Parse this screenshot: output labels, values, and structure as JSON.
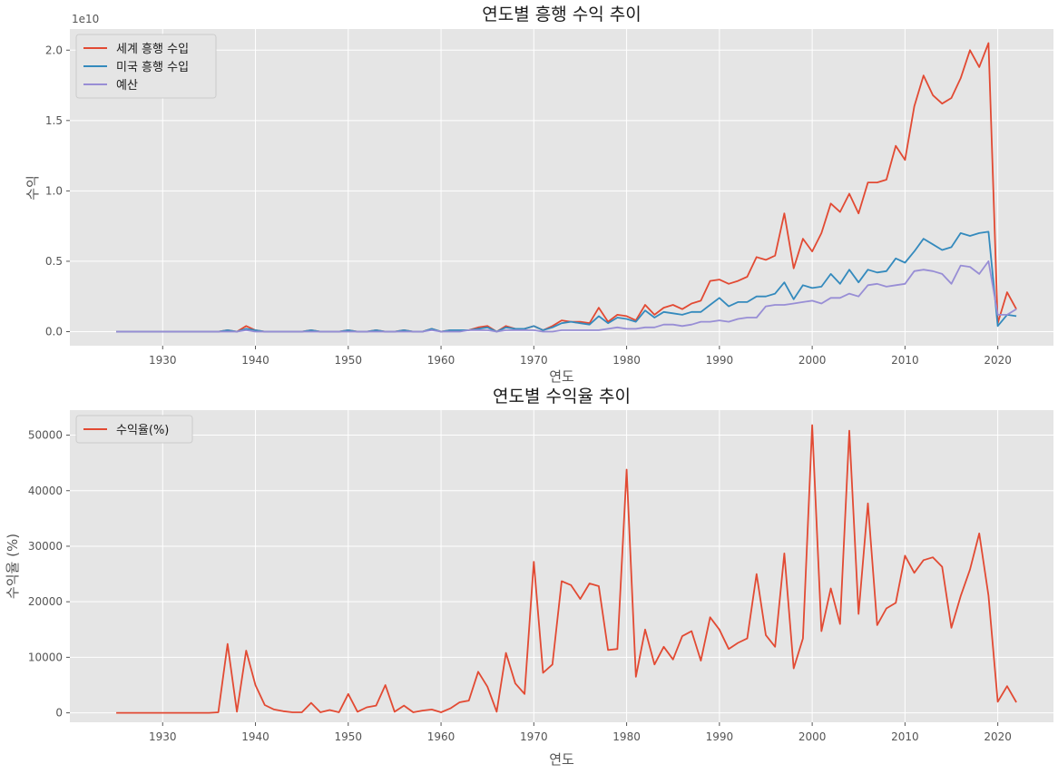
{
  "chart_data": [
    {
      "type": "line",
      "title": "연도별 흥행 수익 추이",
      "xlabel": "연도",
      "ylabel": "수익",
      "y_offset_label": "1e10",
      "y_scale": 10000000000,
      "xlim": [
        1920,
        2026
      ],
      "ylim": [
        -0.1,
        2.15
      ],
      "xticks": [
        1930,
        1940,
        1950,
        1960,
        1970,
        1980,
        1990,
        2000,
        2010,
        2020
      ],
      "xtick_labels": [
        "1930",
        "1940",
        "1950",
        "1960",
        "1970",
        "1980",
        "1990",
        "2000",
        "2010",
        "2020"
      ],
      "yticks": [
        0,
        0.5,
        1.0,
        1.5,
        2.0
      ],
      "ytick_labels": [
        "0.0",
        "0.5",
        "1.0",
        "1.5",
        "2.0"
      ],
      "grid": true,
      "legend_position": "top-left",
      "x": [
        1925,
        1926,
        1927,
        1928,
        1929,
        1930,
        1931,
        1932,
        1933,
        1934,
        1935,
        1936,
        1937,
        1938,
        1939,
        1940,
        1941,
        1942,
        1943,
        1944,
        1945,
        1946,
        1947,
        1948,
        1949,
        1950,
        1951,
        1952,
        1953,
        1954,
        1955,
        1956,
        1957,
        1958,
        1959,
        1960,
        1961,
        1962,
        1963,
        1964,
        1965,
        1966,
        1967,
        1968,
        1969,
        1970,
        1971,
        1972,
        1973,
        1974,
        1975,
        1976,
        1977,
        1978,
        1979,
        1980,
        1981,
        1982,
        1983,
        1984,
        1985,
        1986,
        1987,
        1988,
        1989,
        1990,
        1991,
        1992,
        1993,
        1994,
        1995,
        1996,
        1997,
        1998,
        1999,
        2000,
        2001,
        2002,
        2003,
        2004,
        2005,
        2006,
        2007,
        2008,
        2009,
        2010,
        2011,
        2012,
        2013,
        2014,
        2015,
        2016,
        2017,
        2018,
        2019,
        2020,
        2021,
        2022
      ],
      "series": [
        {
          "name": "세계 흥행 수입",
          "color": "#E24A33",
          "values": [
            0,
            0,
            0,
            0,
            0,
            0,
            0,
            0,
            0,
            0,
            0,
            0,
            0.01,
            0,
            0.04,
            0.01,
            0,
            0,
            0,
            0,
            0,
            0.01,
            0,
            0,
            0,
            0.01,
            0,
            0,
            0.01,
            0,
            0,
            0.01,
            0,
            0,
            0.02,
            0,
            0.01,
            0.01,
            0.01,
            0.03,
            0.04,
            0,
            0.04,
            0.02,
            0.02,
            0.04,
            0.01,
            0.04,
            0.08,
            0.07,
            0.07,
            0.06,
            0.17,
            0.07,
            0.12,
            0.11,
            0.08,
            0.19,
            0.12,
            0.17,
            0.19,
            0.16,
            0.2,
            0.22,
            0.36,
            0.37,
            0.34,
            0.36,
            0.39,
            0.53,
            0.51,
            0.54,
            0.84,
            0.45,
            0.66,
            0.57,
            0.7,
            0.91,
            0.85,
            0.98,
            0.84,
            1.06,
            1.06,
            1.08,
            1.32,
            1.22,
            1.6,
            1.82,
            1.68,
            1.62,
            1.66,
            1.8,
            2.0,
            1.88,
            2.05,
            0.06,
            0.28,
            0.16
          ]
        },
        {
          "name": "미국 흥행 수입",
          "color": "#348ABD",
          "values": [
            0,
            0,
            0,
            0,
            0,
            0,
            0,
            0,
            0,
            0,
            0,
            0,
            0.01,
            0,
            0.02,
            0.01,
            0,
            0,
            0,
            0,
            0,
            0.01,
            0,
            0,
            0,
            0.01,
            0,
            0,
            0.01,
            0,
            0,
            0.01,
            0,
            0,
            0.02,
            0,
            0.01,
            0.01,
            0.01,
            0.02,
            0.03,
            0,
            0.03,
            0.02,
            0.02,
            0.04,
            0.01,
            0.03,
            0.06,
            0.07,
            0.06,
            0.05,
            0.11,
            0.06,
            0.1,
            0.09,
            0.07,
            0.15,
            0.1,
            0.14,
            0.13,
            0.12,
            0.14,
            0.14,
            0.19,
            0.24,
            0.18,
            0.21,
            0.21,
            0.25,
            0.25,
            0.27,
            0.35,
            0.23,
            0.33,
            0.31,
            0.32,
            0.41,
            0.34,
            0.44,
            0.35,
            0.44,
            0.42,
            0.43,
            0.52,
            0.49,
            0.57,
            0.66,
            0.62,
            0.58,
            0.6,
            0.7,
            0.68,
            0.7,
            0.71,
            0.04,
            0.12,
            0.11
          ]
        },
        {
          "name": "예산",
          "color": "#988ED5",
          "values": [
            0,
            0,
            0,
            0,
            0,
            0,
            0,
            0,
            0,
            0,
            0,
            0,
            0,
            0,
            0.01,
            0,
            0,
            0,
            0,
            0,
            0,
            0,
            0,
            0,
            0,
            0,
            0,
            0,
            0,
            0,
            0,
            0,
            0,
            0,
            0.01,
            0,
            0,
            0,
            0.01,
            0.01,
            0.01,
            0,
            0.01,
            0.01,
            0.01,
            0.01,
            0,
            0,
            0.01,
            0.01,
            0.01,
            0.01,
            0.01,
            0.02,
            0.03,
            0.02,
            0.02,
            0.03,
            0.03,
            0.05,
            0.05,
            0.04,
            0.05,
            0.07,
            0.07,
            0.08,
            0.07,
            0.09,
            0.1,
            0.1,
            0.18,
            0.19,
            0.19,
            0.2,
            0.21,
            0.22,
            0.2,
            0.24,
            0.24,
            0.27,
            0.25,
            0.33,
            0.34,
            0.32,
            0.33,
            0.34,
            0.43,
            0.44,
            0.43,
            0.41,
            0.34,
            0.47,
            0.46,
            0.41,
            0.5,
            0.12,
            0.12,
            0.16
          ]
        }
      ]
    },
    {
      "type": "line",
      "title": "연도별 수익율 추이",
      "xlabel": "연도",
      "ylabel": "수익율 (%)",
      "xlim": [
        1920,
        2026
      ],
      "ylim": [
        -1700,
        54500
      ],
      "xticks": [
        1930,
        1940,
        1950,
        1960,
        1970,
        1980,
        1990,
        2000,
        2010,
        2020
      ],
      "xtick_labels": [
        "1930",
        "1940",
        "1950",
        "1960",
        "1970",
        "1980",
        "1990",
        "2000",
        "2010",
        "2020"
      ],
      "yticks": [
        0,
        10000,
        20000,
        30000,
        40000,
        50000
      ],
      "ytick_labels": [
        "0",
        "10000",
        "20000",
        "30000",
        "40000",
        "50000"
      ],
      "grid": true,
      "legend_position": "top-left",
      "x": [
        1925,
        1926,
        1927,
        1928,
        1929,
        1930,
        1931,
        1932,
        1933,
        1934,
        1935,
        1936,
        1937,
        1938,
        1939,
        1940,
        1941,
        1942,
        1943,
        1944,
        1945,
        1946,
        1947,
        1948,
        1949,
        1950,
        1951,
        1952,
        1953,
        1954,
        1955,
        1956,
        1957,
        1958,
        1959,
        1960,
        1961,
        1962,
        1963,
        1964,
        1965,
        1966,
        1967,
        1968,
        1969,
        1970,
        1971,
        1972,
        1973,
        1974,
        1975,
        1976,
        1977,
        1978,
        1979,
        1980,
        1981,
        1982,
        1983,
        1984,
        1985,
        1986,
        1987,
        1988,
        1989,
        1990,
        1991,
        1992,
        1993,
        1994,
        1995,
        1996,
        1997,
        1998,
        1999,
        2000,
        2001,
        2002,
        2003,
        2004,
        2005,
        2006,
        2007,
        2008,
        2009,
        2010,
        2011,
        2012,
        2013,
        2014,
        2015,
        2016,
        2017,
        2018,
        2019,
        2020,
        2021,
        2022
      ],
      "series": [
        {
          "name": "수익율(%)",
          "color": "#E24A33",
          "values": [
            0,
            0,
            0,
            0,
            0,
            0,
            0,
            0,
            0,
            0,
            0,
            100,
            12400,
            200,
            11200,
            5000,
            1400,
            600,
            300,
            100,
            100,
            1800,
            100,
            500,
            100,
            3400,
            200,
            1000,
            1300,
            5000,
            200,
            1300,
            100,
            400,
            600,
            100,
            800,
            1900,
            2200,
            7400,
            4700,
            200,
            10800,
            5300,
            3400,
            27200,
            7200,
            8700,
            23700,
            23000,
            20500,
            23300,
            22800,
            11300,
            11500,
            43800,
            6500,
            15000,
            8700,
            11900,
            9600,
            13800,
            14700,
            9400,
            17200,
            15000,
            11500,
            12600,
            13400,
            25000,
            14000,
            11900,
            28700,
            8000,
            13400,
            51800,
            14700,
            22400,
            16000,
            50800,
            17800,
            37700,
            15800,
            18800,
            19800,
            28300,
            25200,
            27500,
            28000,
            26300,
            15300,
            21000,
            25800,
            32300,
            21100,
            2000,
            4800,
            1900
          ]
        }
      ]
    }
  ]
}
